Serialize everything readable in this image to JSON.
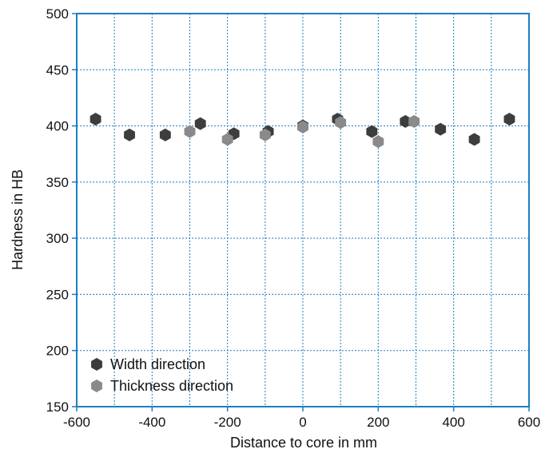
{
  "chart_data": {
    "type": "scatter",
    "title": "",
    "xlabel": "Distance to core in mm",
    "ylabel": "Hardness in HB",
    "xlim": [
      -600,
      600
    ],
    "ylim": [
      150,
      500
    ],
    "xticks": [
      -600,
      -400,
      -200,
      0,
      200,
      400,
      600
    ],
    "yticks": [
      150,
      200,
      250,
      300,
      350,
      400,
      450,
      500
    ],
    "grid": true,
    "legend_position": "bottom-left",
    "colors": {
      "axis": "#1a7fc0",
      "grid": "#1a7fc0",
      "width": "#3d3d3d",
      "thickness": "#8a8a8a"
    },
    "series": [
      {
        "name": "Width direction",
        "marker": "hexagon",
        "color": "#3d3d3d",
        "points": [
          {
            "x": -550,
            "y": 406
          },
          {
            "x": -460,
            "y": 392
          },
          {
            "x": -365,
            "y": 392
          },
          {
            "x": -272,
            "y": 402
          },
          {
            "x": -183,
            "y": 393
          },
          {
            "x": -92,
            "y": 395
          },
          {
            "x": 0,
            "y": 400
          },
          {
            "x": 92,
            "y": 406
          },
          {
            "x": 183,
            "y": 395
          },
          {
            "x": 272,
            "y": 404
          },
          {
            "x": 365,
            "y": 397
          },
          {
            "x": 455,
            "y": 388
          },
          {
            "x": 548,
            "y": 406
          }
        ]
      },
      {
        "name": "Thickness direction",
        "marker": "hexagon",
        "color": "#8a8a8a",
        "points": [
          {
            "x": -300,
            "y": 395
          },
          {
            "x": -200,
            "y": 388
          },
          {
            "x": -100,
            "y": 392
          },
          {
            "x": 0,
            "y": 399
          },
          {
            "x": 100,
            "y": 403
          },
          {
            "x": 200,
            "y": 386
          },
          {
            "x": 295,
            "y": 404
          }
        ]
      }
    ]
  }
}
